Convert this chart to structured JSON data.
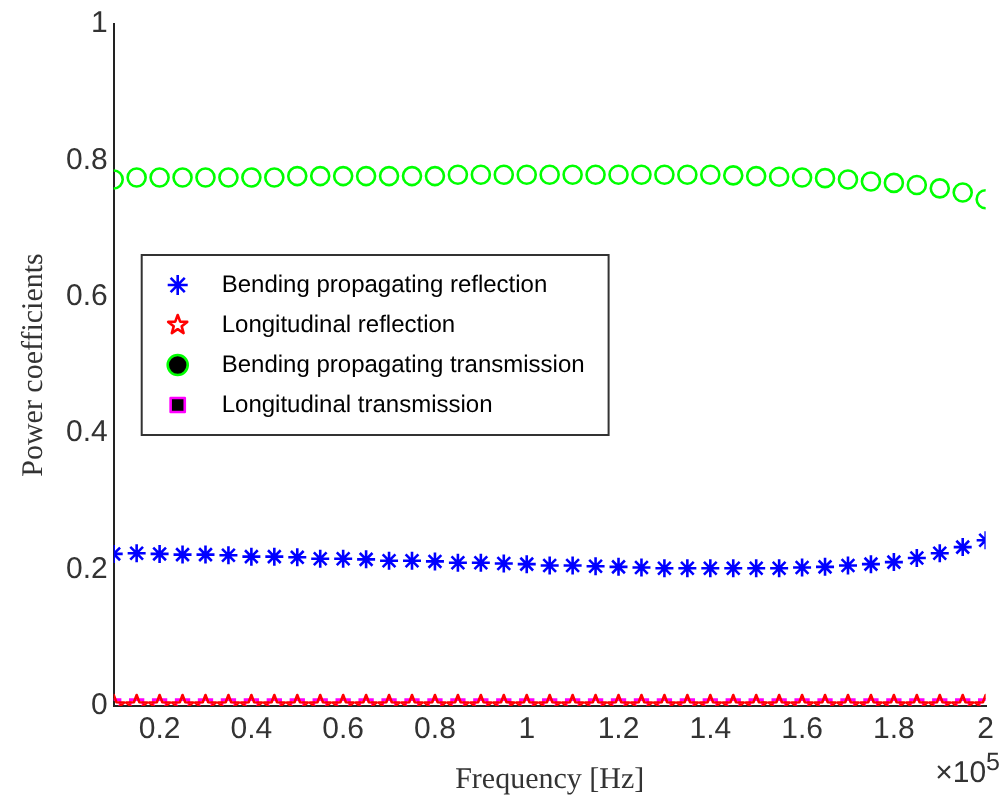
{
  "chart_data": {
    "type": "scatter",
    "xlabel": "Frequency [Hz]",
    "ylabel": "Power coefficients",
    "annotations": [
      "×10$^{5}$"
    ],
    "x": [
      0.1,
      0.15,
      0.2,
      0.25,
      0.3,
      0.35,
      0.4,
      0.45,
      0.5,
      0.55,
      0.6,
      0.65,
      0.7,
      0.75,
      0.8,
      0.85,
      0.9,
      0.95,
      1,
      1.05,
      1.1,
      1.15,
      1.2,
      1.25,
      1.3,
      1.35,
      1.4,
      1.45,
      1.5,
      1.55,
      1.6,
      1.65,
      1.7,
      1.75,
      1.8,
      1.85,
      1.9,
      1.95,
      2
    ],
    "xlim": [
      0.1,
      2
    ],
    "xticks": [
      0.2,
      0.4,
      0.6,
      0.8,
      1,
      1.2,
      1.4,
      1.6,
      1.8,
      2
    ],
    "ylim": [
      0,
      1
    ],
    "yticks": [
      0,
      0.2,
      0.4,
      0.6,
      0.8,
      1
    ],
    "grid": false,
    "legend": "left",
    "series": [
      {
        "name": "Bending propagating reflection",
        "color": "#0000ff",
        "marker": "cross",
        "values": [
          0.223,
          0.224,
          0.223,
          0.222,
          0.222,
          0.221,
          0.219,
          0.219,
          0.218,
          0.216,
          0.216,
          0.215,
          0.213,
          0.213,
          0.212,
          0.21,
          0.21,
          0.209,
          0.208,
          0.206,
          0.206,
          0.205,
          0.204,
          0.203,
          0.202,
          0.202,
          0.202,
          0.202,
          0.202,
          0.202,
          0.203,
          0.204,
          0.206,
          0.208,
          0.211,
          0.217,
          0.224,
          0.233,
          0.243
        ]
      },
      {
        "name": "Longitudinal reflection",
        "color": "#ff0000",
        "marker": "star",
        "values": [
          0,
          0,
          0,
          0,
          0,
          0,
          0,
          0,
          0,
          0,
          0,
          0,
          0,
          0,
          0,
          0,
          0,
          0,
          0,
          0,
          0,
          0,
          0,
          0,
          0,
          0,
          0,
          0,
          0,
          0,
          0,
          0,
          0,
          0,
          0,
          0,
          0,
          0,
          0
        ]
      },
      {
        "name": "Bending propagating transmission",
        "color": "#00ff00",
        "marker": "circle",
        "values": [
          0.772,
          0.775,
          0.775,
          0.775,
          0.775,
          0.775,
          0.775,
          0.775,
          0.777,
          0.777,
          0.777,
          0.777,
          0.777,
          0.777,
          0.777,
          0.779,
          0.779,
          0.779,
          0.779,
          0.779,
          0.779,
          0.779,
          0.779,
          0.779,
          0.779,
          0.779,
          0.779,
          0.778,
          0.777,
          0.776,
          0.775,
          0.774,
          0.772,
          0.769,
          0.767,
          0.764,
          0.759,
          0.753,
          0.743
        ]
      },
      {
        "name": "Longitudinal transmission",
        "color": "#ff00ff",
        "marker": "square",
        "values": [
          0,
          0,
          0,
          0,
          0,
          0,
          0,
          0,
          0,
          0,
          0,
          0,
          0,
          0,
          0,
          0,
          0,
          0,
          0,
          0,
          0,
          0,
          0,
          0,
          0,
          0,
          0,
          0,
          0,
          0,
          0,
          0,
          0,
          0,
          0,
          0,
          0,
          0,
          0
        ]
      }
    ]
  }
}
